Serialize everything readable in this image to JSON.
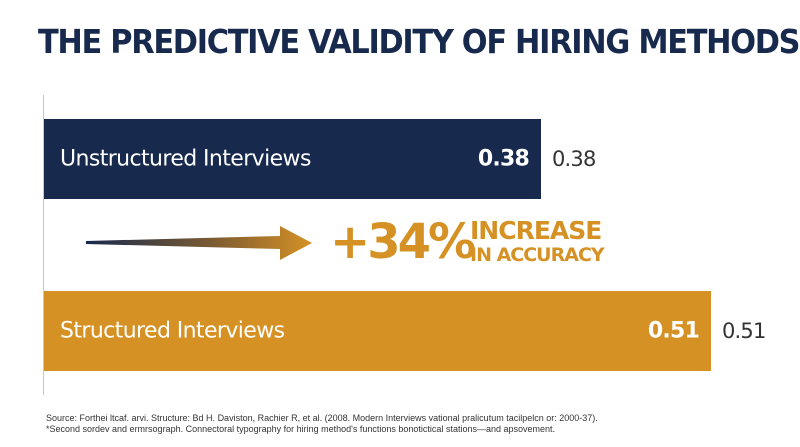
{
  "chart_data": {
    "type": "bar",
    "orientation": "horizontal",
    "title": "THE PREDICTIVE VALIDITY OF HIRING METHODS",
    "categories": [
      "Unstructured Interviews",
      "Structured Interviews"
    ],
    "values": [
      0.38,
      0.51
    ],
    "value_labels_inside": [
      "0.38",
      "0.51"
    ],
    "value_labels_outside": [
      "0.38",
      "0.51"
    ],
    "xlim": [
      0,
      0.54
    ],
    "colors": [
      "#17294d",
      "#d69125"
    ],
    "annotation": {
      "number": "+34%",
      "line1": "INCREASE",
      "line2": "IN ACCURACY",
      "color": "#d69125"
    },
    "grid": false,
    "legend": "none"
  },
  "footnote": {
    "line1": "Source: Forthei ltcaf. arvi. Structure: Bd H. Daviston, Rachier R, et al. (2008. Modern Interviews vational pralicutum tacilpelcn or: 2000-37).",
    "line2": "*Second sordev and ermrsograph. Connectoral typography for hiring method's functions bonotictical stations—and apsovement."
  }
}
